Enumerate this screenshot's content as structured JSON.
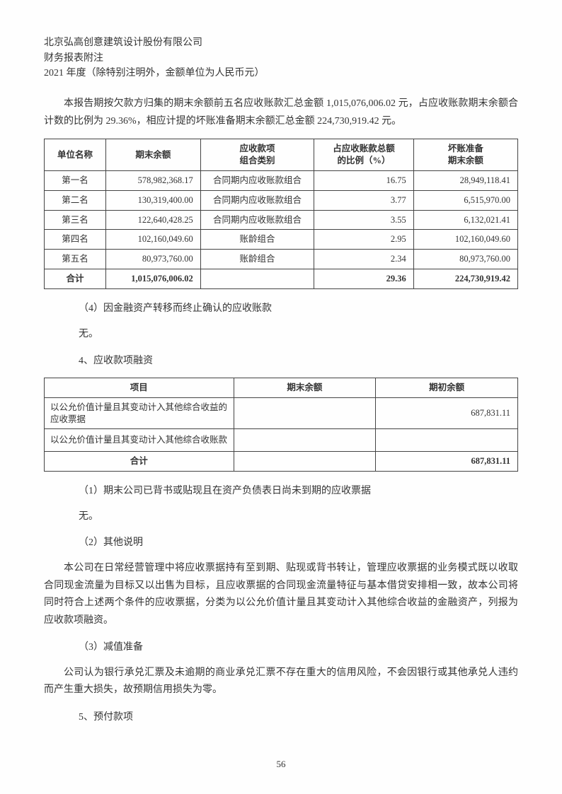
{
  "header": {
    "line1": "北京弘高创意建筑设计股份有限公司",
    "line2": "财务报表附注",
    "line3": "2021 年度（除特别注明外，金额单位为人民币元）"
  },
  "intro_para": "本报告期按欠款方归集的期末余额前五名应收账款汇总金额 1,015,076,006.02 元，占应收账款期末余额合计数的比例为 29.36%，相应计提的坏账准备期末余额汇总金额 224,730,919.42 元。",
  "table1": {
    "headers": [
      "单位名称",
      "期末余额",
      "应收款项\n组合类别",
      "占应收账款总额\n的比例（%）",
      "坏账准备\n期末余额"
    ],
    "rows": [
      [
        "第一名",
        "578,982,368.17",
        "合同期内应收账款组合",
        "16.75",
        "28,949,118.41"
      ],
      [
        "第二名",
        "130,319,400.00",
        "合同期内应收账款组合",
        "3.77",
        "6,515,970.00"
      ],
      [
        "第三名",
        "122,640,428.25",
        "合同期内应收账款组合",
        "3.55",
        "6,132,021.41"
      ],
      [
        "第四名",
        "102,160,049.60",
        "账龄组合",
        "2.95",
        "102,160,049.60"
      ],
      [
        "第五名",
        "80,973,760.00",
        "账龄组合",
        "2.34",
        "80,973,760.00"
      ]
    ],
    "total": [
      "合计",
      "1,015,076,006.02",
      "",
      "29.36",
      "224,730,919.42"
    ]
  },
  "sec_4": "（4）因金融资产转移而终止确认的应收账款",
  "none1": "无。",
  "sec_num4": "4、应收款项融资",
  "table2": {
    "headers": [
      "项目",
      "期末余额",
      "期初余额"
    ],
    "rows": [
      [
        "以公允价值计量且其变动计入其他综合收益的应收票据",
        "",
        "687,831.11"
      ],
      [
        "以公允价值计量且其变动计入其他综合收账款",
        "",
        ""
      ]
    ],
    "total": [
      "合计",
      "",
      "687,831.11"
    ]
  },
  "sec_t2_1": "（1）期末公司已背书或贴现且在资产负债表日尚未到期的应收票据",
  "none2": "无。",
  "sec_t2_2": "（2）其他说明",
  "para_t2": "本公司在日常经营管理中将应收票据持有至到期、贴现或背书转让，管理应收票据的业务模式既以收取合同现金流量为目标又以出售为目标，且应收票据的合同现金流量特征与基本借贷安排相一致，故本公司将同时符合上述两个条件的应收票据，分类为以公允价值计量且其变动计入其他综合收益的金融资产，列报为应收款项融资。",
  "sec_t2_3": "（3）减值准备",
  "para_t3": "公司认为银行承兑汇票及未逾期的商业承兑汇票不存在重大的信用风险，不会因银行或其他承兑人违约而产生重大损失，故预期信用损失为零。",
  "sec_num5": "5、预付款项",
  "page": "56"
}
